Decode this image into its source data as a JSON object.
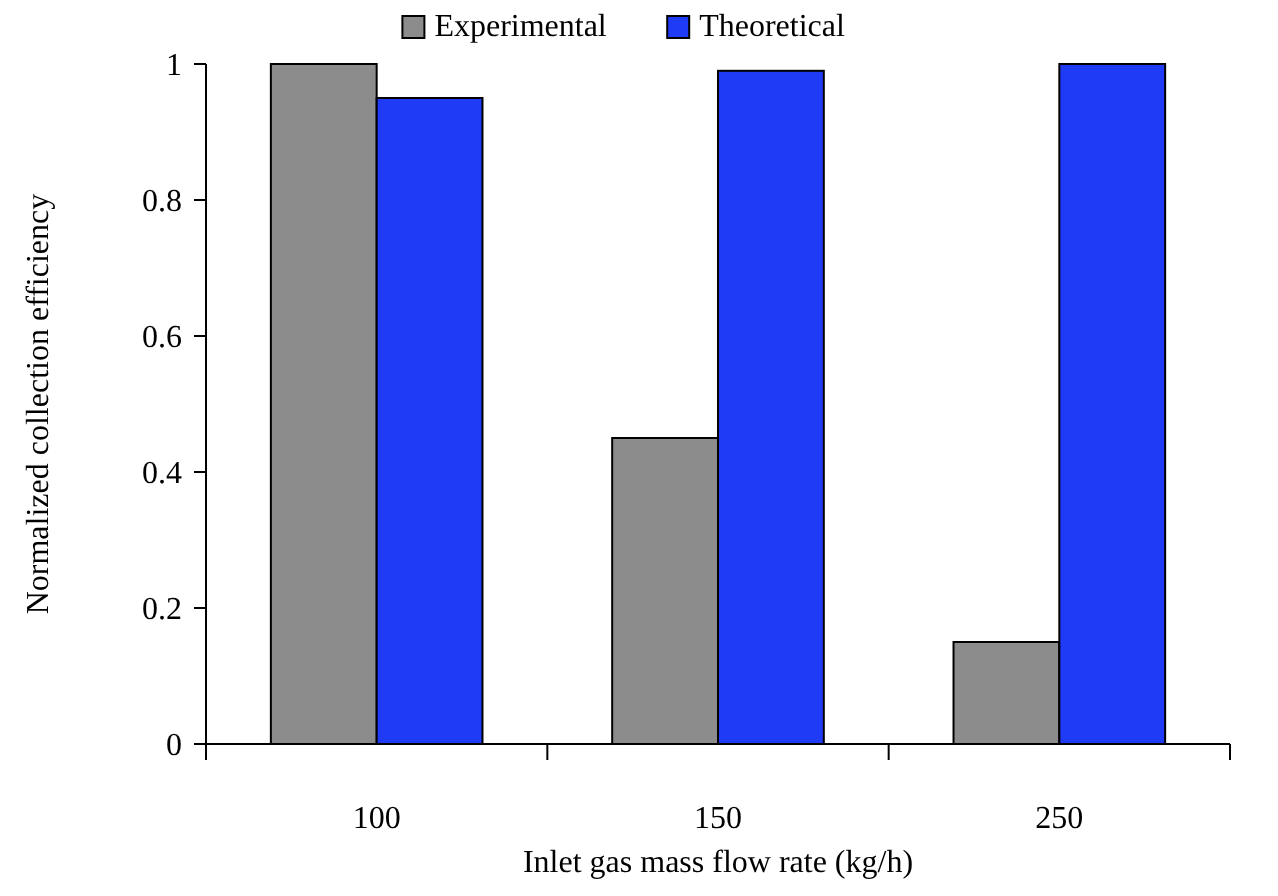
{
  "chart_data": {
    "type": "bar",
    "xlabel": "Inlet gas mass flow rate (kg/h)",
    "ylabel": "Normalized collection efficiency",
    "categories": [
      "100",
      "150",
      "250"
    ],
    "series": [
      {
        "name": "Experimental",
        "color": "#8c8c8c",
        "values": [
          1,
          0.45,
          0.15
        ]
      },
      {
        "name": "Theoretical",
        "color": "#1f3bf5",
        "values": [
          0.95,
          0.99,
          1
        ]
      }
    ],
    "ylim": [
      0,
      1
    ],
    "yticks": [
      0,
      0.2,
      0.4,
      0.6,
      0.8,
      1
    ],
    "grid": false,
    "legend": "top"
  }
}
